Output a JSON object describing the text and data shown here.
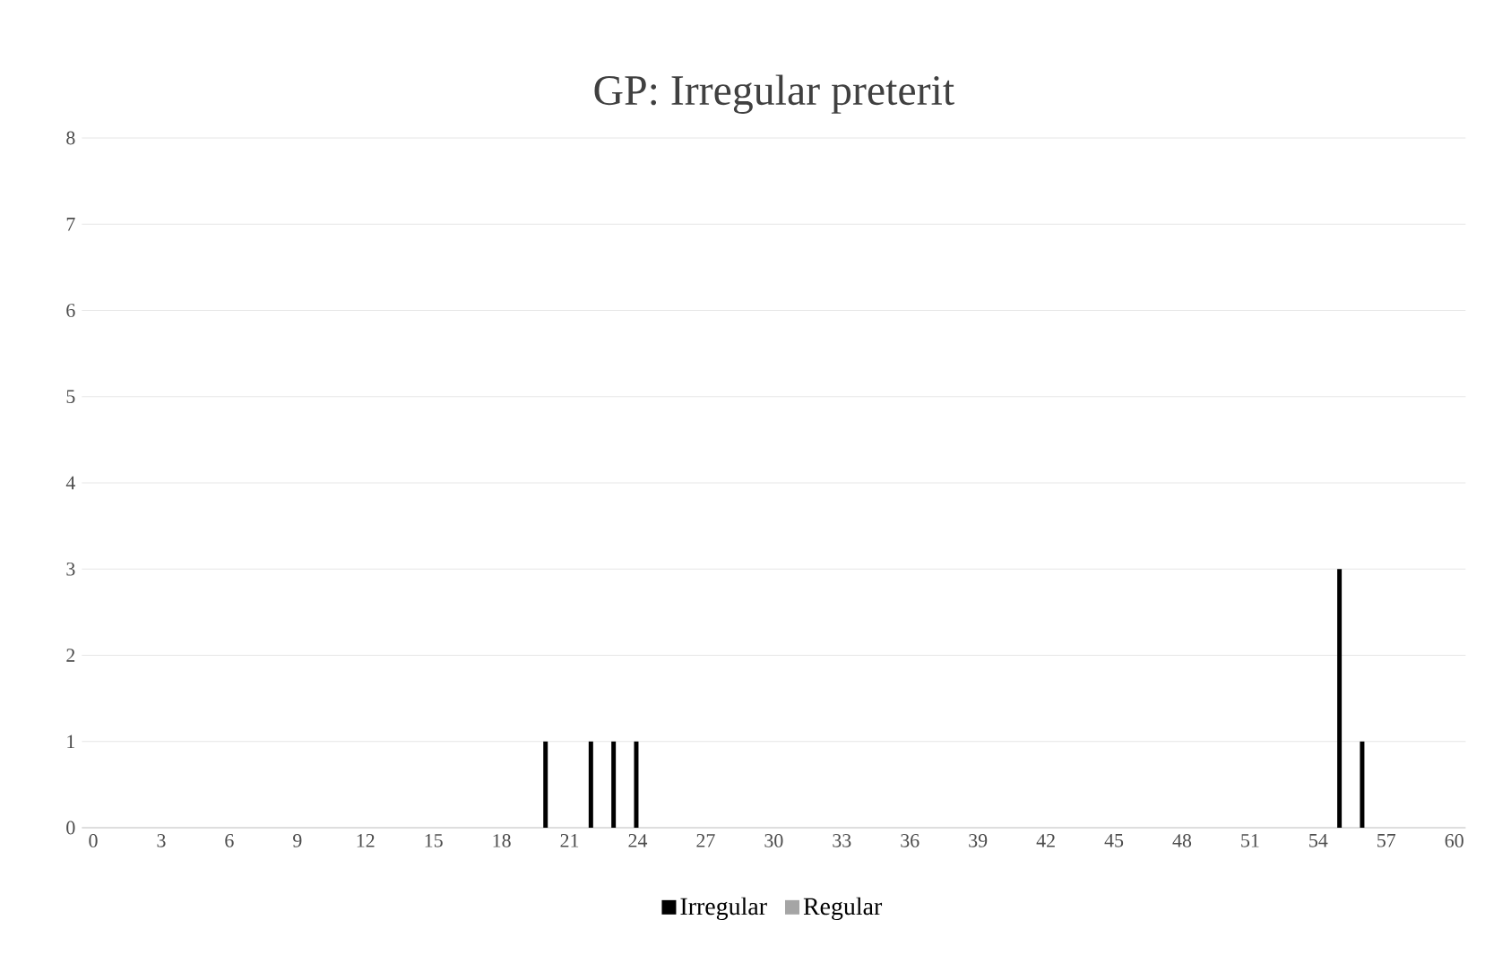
{
  "chart_data": {
    "type": "bar",
    "title": "GP: Irregular preterit",
    "categories": [
      "0",
      null,
      null,
      "3",
      null,
      null,
      "6",
      null,
      null,
      "9",
      null,
      null,
      "12",
      null,
      null,
      "15",
      null,
      null,
      "18",
      null,
      null,
      "21",
      null,
      null,
      "24",
      null,
      null,
      "27",
      null,
      null,
      "30",
      null,
      null,
      "33",
      null,
      null,
      "36",
      null,
      null,
      "39",
      null,
      null,
      "42",
      null,
      null,
      "45",
      null,
      null,
      "48",
      null,
      null,
      "51",
      null,
      null,
      "54",
      null,
      null,
      "57",
      null,
      null,
      "60"
    ],
    "series": [
      {
        "name": "Irregular",
        "color": "#000000",
        "values": [
          0,
          0,
          0,
          0,
          0,
          0,
          0,
          0,
          0,
          0,
          0,
          0,
          0,
          0,
          0,
          0,
          0,
          0,
          0,
          0,
          1,
          0,
          1,
          1,
          1,
          0,
          0,
          0,
          0,
          0,
          0,
          0,
          0,
          0,
          0,
          0,
          0,
          0,
          0,
          0,
          0,
          0,
          0,
          0,
          0,
          0,
          0,
          0,
          0,
          0,
          0,
          0,
          0,
          0,
          0,
          3,
          1,
          0,
          0,
          0,
          0
        ]
      },
      {
        "name": "Regular",
        "color": "#a5a5a5",
        "values": [
          0,
          0,
          0,
          0,
          0,
          0,
          0,
          0,
          0,
          0,
          0,
          0,
          0,
          0,
          0,
          0,
          0,
          0,
          0,
          0,
          0,
          0,
          0,
          0,
          0,
          0,
          0,
          0,
          0,
          0,
          0,
          0,
          0,
          0,
          0,
          0,
          0,
          0,
          0,
          0,
          0,
          0,
          0,
          0,
          0,
          0,
          0,
          0,
          0,
          0,
          0,
          0,
          0,
          0,
          0,
          0,
          0,
          0,
          0,
          0,
          0
        ]
      }
    ],
    "ylim": [
      0,
      8
    ],
    "yticks": [
      0,
      1,
      2,
      3,
      4,
      5,
      6,
      7,
      8
    ],
    "grid": "y",
    "legend": "bottom"
  }
}
